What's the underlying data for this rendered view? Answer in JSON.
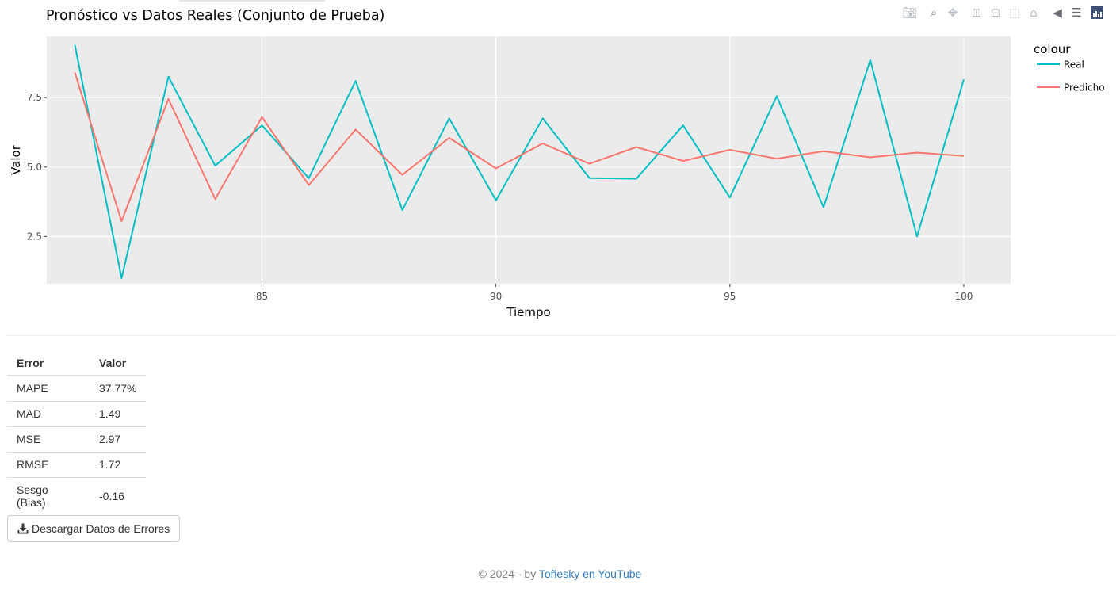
{
  "chart_data": {
    "type": "line",
    "title": "Pronóstico vs Datos Reales (Conjunto de Prueba)",
    "xlabel": "Tiempo",
    "ylabel": "Valor",
    "xlim": [
      80.4,
      101
    ],
    "ylim": [
      0.8,
      9.7
    ],
    "x_ticks": [
      85,
      90,
      95,
      100
    ],
    "x_tick_labels": [
      "85",
      "90",
      "95",
      "100"
    ],
    "y_ticks": [
      2.5,
      5.0,
      7.5
    ],
    "y_tick_labels": [
      "2.5",
      "5.0",
      "7.5"
    ],
    "grid": true,
    "legend_title": "colour",
    "legend_position": "right",
    "x": [
      81,
      82,
      83,
      84,
      85,
      86,
      87,
      88,
      89,
      90,
      91,
      92,
      93,
      94,
      95,
      96,
      97,
      98,
      99,
      100
    ],
    "series": [
      {
        "name": "Real",
        "color": "#00bfc4",
        "values": [
          9.4,
          1.0,
          8.25,
          5.05,
          6.5,
          4.6,
          8.1,
          3.45,
          6.75,
          3.8,
          6.75,
          4.6,
          4.58,
          6.5,
          3.9,
          7.55,
          3.55,
          8.85,
          2.5,
          8.15
        ]
      },
      {
        "name": "Predicho",
        "color": "#f8766d",
        "values": [
          8.4,
          3.05,
          7.45,
          3.85,
          6.8,
          4.35,
          6.35,
          4.72,
          6.05,
          4.95,
          5.85,
          5.12,
          5.72,
          5.22,
          5.62,
          5.3,
          5.57,
          5.35,
          5.52,
          5.4
        ]
      }
    ]
  },
  "modebar": {
    "icons": [
      "camera-icon",
      "zoom-icon",
      "pan-icon",
      "zoom-in-icon",
      "zoom-out-icon",
      "autoscale-icon",
      "reset-axes-icon",
      "spike-lines-icon",
      "compare-hover-icon",
      "plotly-logo-icon"
    ]
  },
  "error_table": {
    "headers": [
      "Error",
      "Valor"
    ],
    "rows": [
      {
        "metric": "MAPE",
        "value": "37.77%"
      },
      {
        "metric": "MAD",
        "value": "1.49"
      },
      {
        "metric": "MSE",
        "value": "2.97"
      },
      {
        "metric": "RMSE",
        "value": "1.72"
      },
      {
        "metric": "Sesgo (Bias)",
        "value": "-0.16"
      }
    ]
  },
  "download": {
    "label": "Descargar Datos de Errores",
    "icon": "download-icon"
  },
  "footer": {
    "prefix": "© 2024 - by ",
    "link_text": "Toñesky en YouTube",
    "link_color": "#337ab7"
  }
}
